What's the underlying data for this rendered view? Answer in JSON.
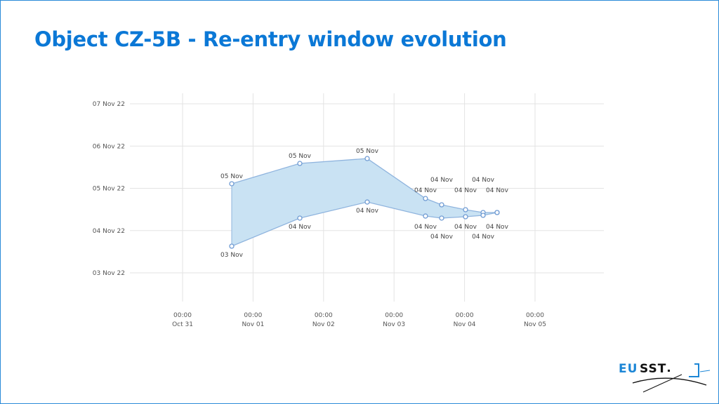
{
  "title": "Object CZ-5B - Re-entry window evolution",
  "logo_text": "EUSST",
  "chart_data": {
    "type": "area",
    "title": "",
    "xlabel": "",
    "ylabel": "",
    "x_axis": {
      "type": "datetime",
      "range": [
        "2022-10-31T00:00",
        "2022-11-05T12:00"
      ],
      "ticks": [
        {
          "time": "00:00",
          "date": "Oct 31",
          "value": "2022-10-31T00:00"
        },
        {
          "time": "00:00",
          "date": "Nov 01",
          "value": "2022-11-01T00:00"
        },
        {
          "time": "00:00",
          "date": "Nov 02",
          "value": "2022-11-02T00:00"
        },
        {
          "time": "00:00",
          "date": "Nov 03",
          "value": "2022-11-03T00:00"
        },
        {
          "time": "00:00",
          "date": "Nov 04",
          "value": "2022-11-04T00:00"
        },
        {
          "time": "00:00",
          "date": "Nov 05",
          "value": "2022-11-05T00:00"
        }
      ]
    },
    "y_axis": {
      "type": "datetime",
      "range": [
        "2022-11-02T12:00",
        "2022-11-07T00:00"
      ],
      "ticks": [
        {
          "label": "07 Nov 22",
          "value": "2022-11-07T00:00"
        },
        {
          "label": "06 Nov 22",
          "value": "2022-11-06T00:00"
        },
        {
          "label": "05 Nov 22",
          "value": "2022-11-05T00:00"
        },
        {
          "label": "04 Nov 22",
          "value": "2022-11-04T00:00"
        },
        {
          "label": "03 Nov 22",
          "value": "2022-11-03T00:00"
        }
      ]
    },
    "grid": true,
    "legend": "none",
    "colors": {
      "fill": "#c9e2f3",
      "line": "#8fb4de",
      "grid": "#e3e3e3"
    },
    "series": [
      {
        "role": "upper",
        "points": [
          {
            "x": "2022-10-31T16:44",
            "y": "2022-11-05T02:36",
            "label": "05 Nov"
          },
          {
            "x": "2022-11-01T15:55",
            "y": "2022-11-05T14:08",
            "label": "05 Nov"
          },
          {
            "x": "2022-11-02T14:52",
            "y": "2022-11-05T16:55",
            "label": "05 Nov"
          },
          {
            "x": "2022-11-03T10:42",
            "y": "2022-11-04T18:13",
            "label": "04 Nov"
          },
          {
            "x": "2022-11-03T16:12",
            "y": "2022-11-04T14:38",
            "label": "04 Nov"
          },
          {
            "x": "2022-11-04T00:20",
            "y": "2022-11-04T11:51",
            "label": "04 Nov"
          },
          {
            "x": "2022-11-04T06:19",
            "y": "2022-11-04T10:15",
            "label": "04 Nov"
          },
          {
            "x": "2022-11-04T11:05",
            "y": "2022-11-04T10:15",
            "label": "04 Nov"
          }
        ]
      },
      {
        "role": "lower",
        "points": [
          {
            "x": "2022-10-31T16:44",
            "y": "2022-11-03T15:08",
            "label": "03 Nov"
          },
          {
            "x": "2022-11-01T15:55",
            "y": "2022-11-04T07:05",
            "label": "04 Nov"
          },
          {
            "x": "2022-11-02T14:52",
            "y": "2022-11-04T16:13",
            "label": "04 Nov"
          },
          {
            "x": "2022-11-03T10:42",
            "y": "2022-11-04T08:15",
            "label": "04 Nov"
          },
          {
            "x": "2022-11-03T16:12",
            "y": "2022-11-04T07:05",
            "label": "04 Nov"
          },
          {
            "x": "2022-11-04T00:20",
            "y": "2022-11-04T07:52",
            "label": "04 Nov"
          },
          {
            "x": "2022-11-04T06:19",
            "y": "2022-11-04T08:40",
            "label": "04 Nov"
          },
          {
            "x": "2022-11-04T11:05",
            "y": "2022-11-04T10:15",
            "label": "04 Nov"
          }
        ]
      }
    ]
  }
}
